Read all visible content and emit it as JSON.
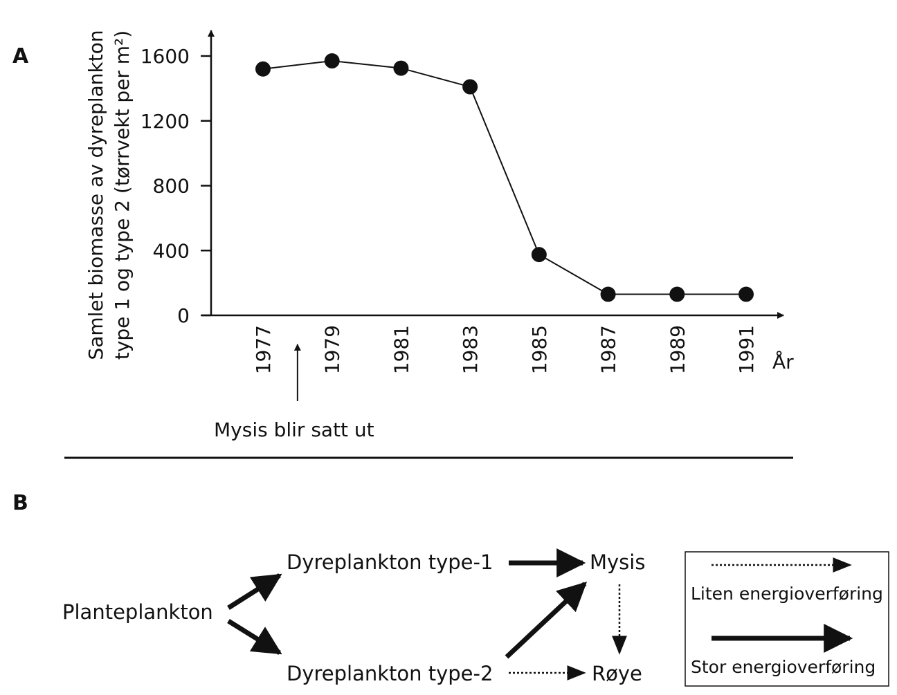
{
  "panel_a": {
    "letter": "A",
    "ylabel_line1": "Samlet biomasse av dyreplankton",
    "ylabel_line2": "type 1 og type 2 (tørrvekt per m²)",
    "xlabel": "År",
    "annotation": "Mysis blir satt ut"
  },
  "panel_b": {
    "letter": "B",
    "nodes": {
      "planteplankton": "Planteplankton",
      "type1": "Dyreplankton type-1",
      "type2": "Dyreplankton type-2",
      "mysis": "Mysis",
      "roye": "Røye"
    },
    "legend": {
      "small": "Liten energioverføring",
      "large": "Stor energioverføring"
    }
  },
  "chart_data": {
    "type": "line",
    "x": [
      1977,
      1979,
      1981,
      1983,
      1985,
      1987,
      1989,
      1991
    ],
    "y": [
      1520,
      1570,
      1525,
      1410,
      375,
      130,
      130,
      130
    ],
    "yticks": [
      0,
      400,
      800,
      1200,
      1600
    ],
    "xticks": [
      "1977",
      "1979",
      "1981",
      "1983",
      "1985",
      "1987",
      "1989",
      "1991"
    ],
    "annotation_year": 1978,
    "xlabel": "År",
    "ylabel": "Samlet biomasse av dyreplankton type 1 og type 2 (tørrvekt per m²)",
    "grid": false
  }
}
